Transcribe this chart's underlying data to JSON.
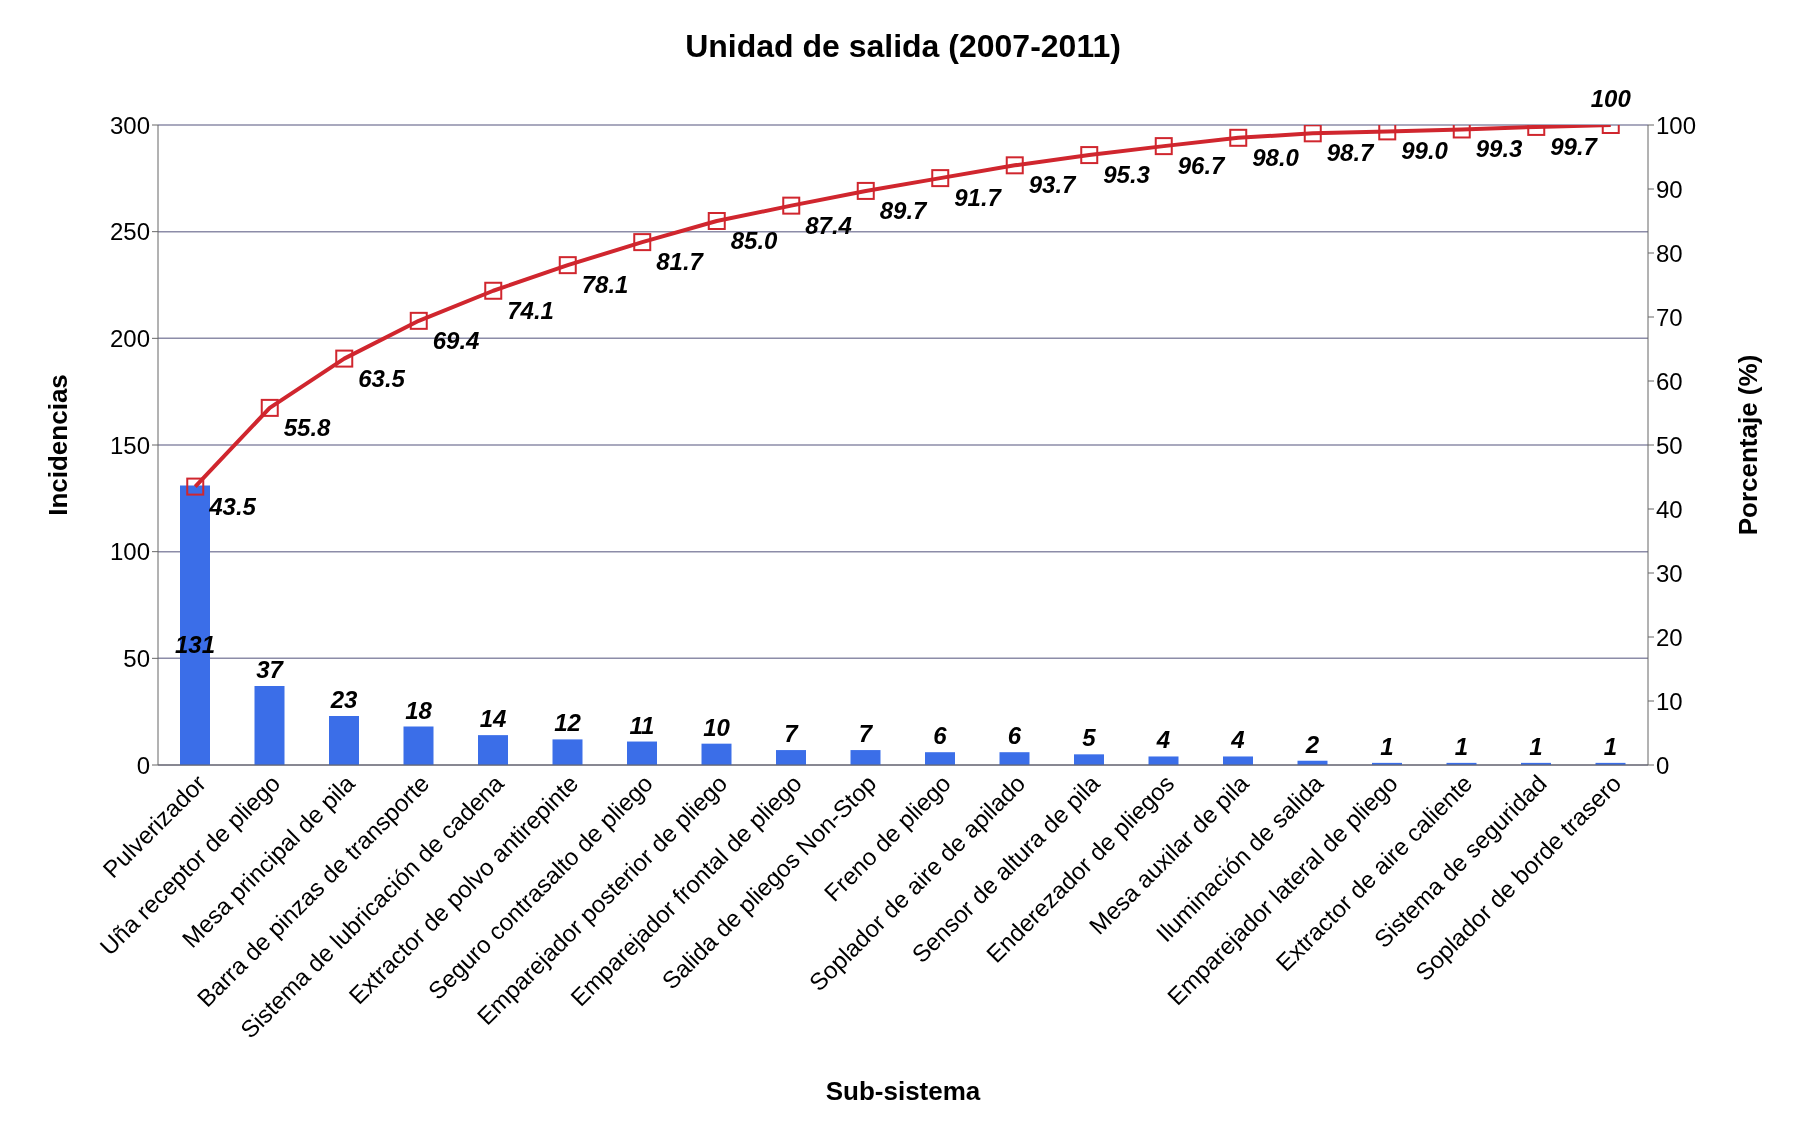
{
  "chart_data": {
    "type": "bar",
    "title": "Unidad de salida (2007-2011)",
    "xlabel": "Sub-sistema",
    "ylabel": "Incidencias",
    "y2label": "Porcentaje (%)",
    "categories": [
      "Pulverizador",
      "Uña receptor de pliego",
      "Mesa principal de pila",
      "Barra de pinzas de transporte",
      "Sistema de lubricación de cadena",
      "Extractor de polvo antirepinte",
      "Seguro contrasalto de pliego",
      "Emparejador posterior de pliego",
      "Emparejador frontal de pliego",
      "Salida de pliegos Non-Stop",
      "Freno de pliego",
      "Soplador de aire de apilado",
      "Sensor de altura de pila",
      "Enderezador de pliegos",
      "Mesa auxilar de pila",
      "Iluminación de salida",
      "Emparejador lateral de pliego",
      "Extractor de aire caliente",
      "Sistema de seguridad",
      "Soplador de borde trasero"
    ],
    "series": [
      {
        "color": "#3b6ee8",
        "values": [
          131,
          37,
          23,
          18,
          14,
          12,
          11,
          10,
          7,
          7,
          6,
          6,
          5,
          4,
          4,
          2,
          1,
          1,
          1,
          1
        ]
      },
      {
        "type": "line",
        "axis": "y2",
        "color": "#d0262e",
        "marker": "square",
        "values": [
          43.5,
          55.8,
          63.5,
          69.4,
          74.1,
          78.1,
          81.7,
          85.0,
          87.4,
          89.7,
          91.7,
          93.7,
          95.3,
          96.7,
          98.0,
          98.7,
          99.0,
          99.3,
          99.7,
          100
        ],
        "value_labels": [
          "43.5",
          "55.8",
          "63.5",
          "69.4",
          "74.1",
          "78.1",
          "81.7",
          "85.0",
          "87.4",
          "89.7",
          "91.7",
          "93.7",
          "95.3",
          "96.7",
          "98.0",
          "98.7",
          "99.0",
          "99.3",
          "99.7",
          "100"
        ]
      }
    ],
    "data_labels": true,
    "ylim": [
      0,
      300
    ],
    "yticks": [
      0,
      50,
      100,
      150,
      200,
      250,
      300
    ],
    "y2lim": [
      0,
      100
    ],
    "y2ticks": [
      0,
      10,
      20,
      30,
      40,
      50,
      60,
      70,
      80,
      90,
      100
    ],
    "grid": "y"
  }
}
